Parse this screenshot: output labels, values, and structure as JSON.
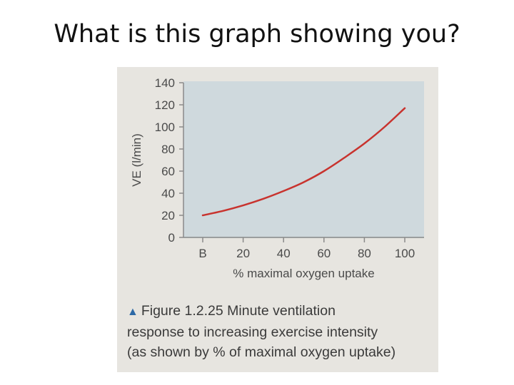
{
  "slide": {
    "title": "What is this graph showing you?"
  },
  "figure": {
    "caption_marker": "▲",
    "caption_lines": [
      "Figure 1.2.25 Minute ventilation",
      "response to increasing exercise intensity",
      "(as shown by % of maximal oxygen uptake)"
    ]
  },
  "colors": {
    "plot_background": "#cfd9dd",
    "curve": "#c8332e",
    "axis_text": "#4a4a4a",
    "caption_marker": "#2d69a6"
  },
  "chart_data": {
    "type": "line",
    "title": "",
    "xlabel": "% maximal oxygen uptake",
    "ylabel": "VE (l/min)",
    "xlim": [
      0,
      100
    ],
    "ylim": [
      0,
      140
    ],
    "x_ticks": [
      {
        "value": 0,
        "label": "B"
      },
      {
        "value": 20,
        "label": "20"
      },
      {
        "value": 40,
        "label": "40"
      },
      {
        "value": 60,
        "label": "60"
      },
      {
        "value": 80,
        "label": "80"
      },
      {
        "value": 100,
        "label": "100"
      }
    ],
    "y_ticks": [
      0,
      20,
      40,
      60,
      80,
      100,
      120,
      140
    ],
    "grid": false,
    "series": [
      {
        "x": [
          0,
          10,
          20,
          30,
          40,
          50,
          60,
          70,
          80,
          90,
          100
        ],
        "y": [
          20,
          24,
          29,
          35,
          42,
          50,
          60,
          72,
          85,
          100,
          117
        ]
      }
    ]
  }
}
